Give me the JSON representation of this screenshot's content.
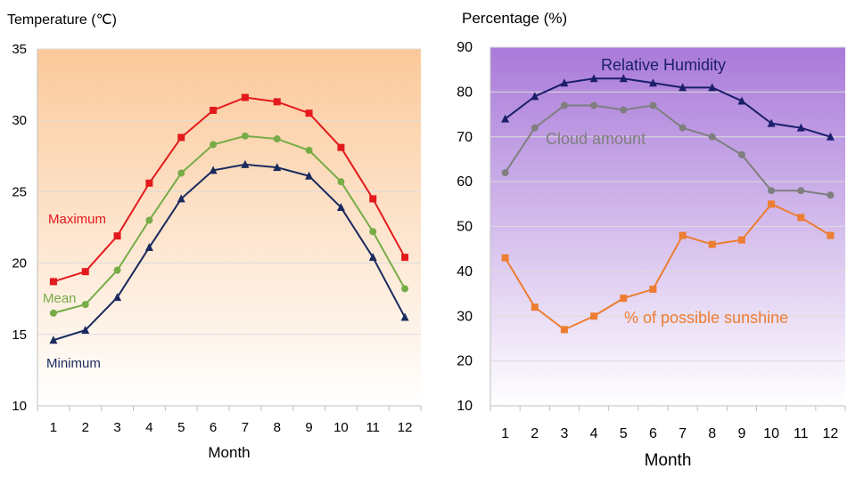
{
  "chart_data": [
    {
      "type": "line",
      "title": "",
      "ylabel": "Temperature (℃)",
      "xlabel": "Month",
      "categories": [
        "1",
        "2",
        "3",
        "4",
        "5",
        "6",
        "7",
        "8",
        "9",
        "10",
        "11",
        "12"
      ],
      "ylim": [
        10,
        35
      ],
      "yticks": [
        10,
        15,
        20,
        25,
        30,
        35
      ],
      "grid": true,
      "background": {
        "top": "#fbc99a",
        "bottom": "#ffffff"
      },
      "series": [
        {
          "name": "Maximum",
          "color": "#e31a1c",
          "marker": "square",
          "values": [
            18.7,
            19.4,
            21.9,
            25.6,
            28.8,
            30.7,
            31.6,
            31.3,
            30.5,
            28.1,
            24.5,
            20.4
          ]
        },
        {
          "name": "Mean",
          "color": "#77ac46",
          "marker": "circle",
          "values": [
            16.5,
            17.1,
            19.5,
            23.0,
            26.3,
            28.3,
            28.9,
            28.7,
            27.9,
            25.7,
            22.2,
            18.2
          ]
        },
        {
          "name": "Minimum",
          "color": "#1a2a5e",
          "marker": "triangle",
          "values": [
            14.6,
            15.3,
            17.6,
            21.1,
            24.5,
            26.5,
            26.9,
            26.7,
            26.1,
            23.9,
            20.4,
            16.2
          ]
        }
      ]
    },
    {
      "type": "line",
      "title": "",
      "ylabel": "Percentage (%)",
      "xlabel": "Month",
      "categories": [
        "1",
        "2",
        "3",
        "4",
        "5",
        "6",
        "7",
        "8",
        "9",
        "10",
        "11",
        "12"
      ],
      "ylim": [
        10,
        90
      ],
      "yticks": [
        10,
        20,
        30,
        40,
        50,
        60,
        70,
        80,
        90
      ],
      "grid": true,
      "background": {
        "top": "#a97ad9",
        "bottom": "#ffffff"
      },
      "series": [
        {
          "name": "Relative Humidity",
          "color": "#1b1f6b",
          "marker": "triangle",
          "values": [
            74,
            79,
            82,
            83,
            83,
            82,
            81,
            81,
            78,
            73,
            72,
            70
          ]
        },
        {
          "name": "Cloud amount",
          "color": "#7f7f7f",
          "marker": "circle",
          "values": [
            62,
            72,
            77,
            77,
            76,
            77,
            72,
            70,
            66,
            58,
            58,
            57
          ]
        },
        {
          "name": "% of possible sunshine",
          "color": "#ed7d31",
          "marker": "square",
          "values": [
            43,
            32,
            27,
            30,
            34,
            36,
            48,
            46,
            47,
            55,
            52,
            48
          ]
        }
      ]
    }
  ]
}
